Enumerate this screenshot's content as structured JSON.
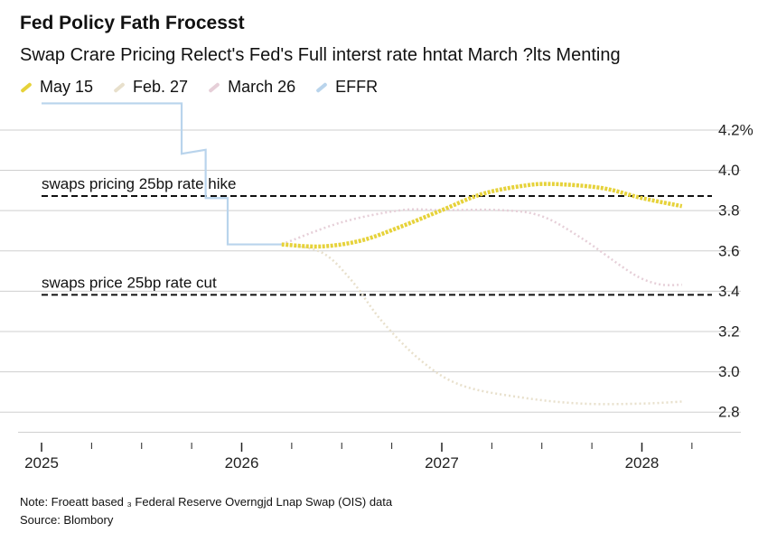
{
  "header": {
    "title": "Fed Policy Fath Frocesst",
    "subtitle": "Swap Crare Pricing Relect's Fed's Full interst rate hntat March ?lts Menting"
  },
  "footer": {
    "note": "Note: Froeatt based ₃ Federal Reserve Overngjd Lnap Swap (OIS) data",
    "source": "Source: Blombory"
  },
  "colors": {
    "may15": "#e6d23a",
    "feb27": "#e8e0cc",
    "march26": "#e6cfd8",
    "effr": "#b9d4ec",
    "grid": "#cfcfcf",
    "ref": "#111111"
  },
  "chart_data": {
    "type": "line",
    "title": "Fed Policy Fath Frocesst",
    "subtitle": "Swap Crare Pricing Relect's Fed's Full interst rate hntat March ?lts Menting",
    "xlim": [
      2025.0,
      2028.35
    ],
    "ylim": [
      2.7,
      4.35
    ],
    "x_ticks": [
      2025,
      2026,
      2027,
      2028
    ],
    "x_tick_labels": [
      "2025",
      "2026",
      "2027",
      "2028"
    ],
    "y_ticks": [
      2.8,
      3.0,
      3.2,
      3.4,
      3.6,
      3.8,
      4.0,
      4.2
    ],
    "y_tick_labels": [
      "2.8",
      "3.0",
      "3.2",
      "3.4",
      "3.6",
      "3.8",
      "4.0",
      "4.2%"
    ],
    "grid": true,
    "legend_position": "top-left",
    "reference_lines": [
      {
        "y": 3.87,
        "label": "swaps pricing 25bp rate hike"
      },
      {
        "y": 3.38,
        "label": "swaps price 25bp rate cut"
      }
    ],
    "series": [
      {
        "name": "May 15",
        "key": "may15",
        "style": "dotted-thick",
        "points": [
          [
            2026.2,
            3.63
          ],
          [
            2026.4,
            3.62
          ],
          [
            2026.6,
            3.65
          ],
          [
            2026.8,
            3.72
          ],
          [
            2027.0,
            3.8
          ],
          [
            2027.2,
            3.88
          ],
          [
            2027.4,
            3.92
          ],
          [
            2027.55,
            3.93
          ],
          [
            2027.8,
            3.91
          ],
          [
            2028.0,
            3.86
          ],
          [
            2028.2,
            3.82
          ]
        ]
      },
      {
        "name": "Feb. 27",
        "key": "feb27",
        "style": "dotted",
        "points": [
          [
            2026.2,
            3.63
          ],
          [
            2026.4,
            3.59
          ],
          [
            2026.55,
            3.45
          ],
          [
            2026.7,
            3.25
          ],
          [
            2026.9,
            3.05
          ],
          [
            2027.1,
            2.93
          ],
          [
            2027.4,
            2.87
          ],
          [
            2027.7,
            2.84
          ],
          [
            2028.0,
            2.84
          ],
          [
            2028.2,
            2.85
          ]
        ]
      },
      {
        "name": "March 26",
        "key": "march26",
        "style": "dotted",
        "points": [
          [
            2026.2,
            3.63
          ],
          [
            2026.5,
            3.74
          ],
          [
            2026.8,
            3.8
          ],
          [
            2027.0,
            3.8
          ],
          [
            2027.3,
            3.8
          ],
          [
            2027.5,
            3.77
          ],
          [
            2027.7,
            3.66
          ],
          [
            2027.9,
            3.52
          ],
          [
            2028.0,
            3.46
          ],
          [
            2028.1,
            3.43
          ],
          [
            2028.2,
            3.43
          ]
        ]
      },
      {
        "name": "EFFR",
        "key": "effr",
        "style": "solid-step",
        "points": [
          [
            2025.0,
            4.33
          ],
          [
            2025.7,
            4.33
          ],
          [
            2025.7,
            4.08
          ],
          [
            2025.82,
            4.1
          ],
          [
            2025.82,
            3.86
          ],
          [
            2025.93,
            3.86
          ],
          [
            2025.93,
            3.63
          ],
          [
            2026.2,
            3.63
          ]
        ]
      }
    ]
  }
}
